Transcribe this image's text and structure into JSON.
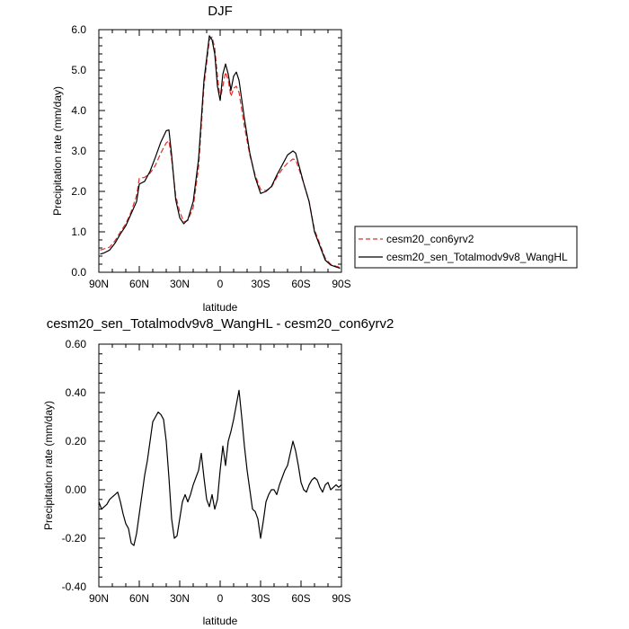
{
  "chart_data": [
    {
      "type": "line",
      "title": "DJF",
      "xlabel": "latitude",
      "ylabel": "Precipitation rate (mm/day)",
      "x_ticks": [
        "90N",
        "60N",
        "30N",
        "0",
        "30S",
        "60S",
        "90S"
      ],
      "xlim": [
        90,
        -90
      ],
      "ylim": [
        0,
        6
      ],
      "y_ticks": [
        "0.0",
        "1.0",
        "2.0",
        "3.0",
        "4.0",
        "5.0",
        "6.0"
      ],
      "legend": "right",
      "series": [
        {
          "name": "cesm20_con6yrv2",
          "color": "#e0302a",
          "style": "dashed",
          "x": [
            89,
            86,
            82,
            78,
            74,
            70,
            66,
            62,
            60,
            56,
            52,
            48,
            44,
            40,
            38,
            36,
            33,
            30,
            27,
            24,
            20,
            16,
            12,
            8,
            6,
            4,
            2,
            0,
            -2,
            -4,
            -6,
            -8,
            -10,
            -12,
            -14,
            -18,
            -22,
            -26,
            -30,
            -34,
            -38,
            -42,
            -46,
            -50,
            -54,
            -56,
            -58,
            -62,
            -66,
            -70,
            -74,
            -78,
            -82,
            -86,
            -89
          ],
          "y": [
            0.55,
            0.58,
            0.62,
            0.78,
            1.0,
            1.2,
            1.5,
            1.9,
            2.32,
            2.35,
            2.45,
            2.65,
            2.95,
            3.2,
            3.25,
            2.8,
            1.9,
            1.5,
            1.25,
            1.28,
            1.6,
            2.6,
            4.6,
            5.75,
            5.82,
            5.55,
            4.85,
            4.28,
            4.6,
            4.95,
            4.75,
            4.35,
            4.55,
            4.6,
            4.45,
            3.6,
            2.9,
            2.4,
            2.05,
            2.02,
            2.1,
            2.35,
            2.55,
            2.7,
            2.8,
            2.78,
            2.6,
            2.2,
            1.75,
            1.05,
            0.7,
            0.35,
            0.2,
            0.15,
            0.12
          ]
        },
        {
          "name": "cesm20_sen_Totalmodv9v8_WangHL",
          "color": "#000000",
          "style": "solid",
          "x": [
            89,
            86,
            82,
            78,
            74,
            70,
            66,
            62,
            60,
            56,
            52,
            48,
            44,
            40,
            38,
            36,
            33,
            30,
            27,
            24,
            20,
            16,
            12,
            8,
            6,
            4,
            2,
            0,
            -2,
            -4,
            -6,
            -8,
            -10,
            -12,
            -14,
            -18,
            -22,
            -26,
            -30,
            -34,
            -38,
            -42,
            -46,
            -50,
            -54,
            -56,
            -58,
            -62,
            -66,
            -70,
            -74,
            -78,
            -82,
            -86,
            -89
          ],
          "y": [
            0.45,
            0.48,
            0.55,
            0.72,
            0.95,
            1.15,
            1.45,
            1.75,
            2.18,
            2.25,
            2.5,
            2.85,
            3.22,
            3.5,
            3.52,
            2.9,
            1.8,
            1.35,
            1.2,
            1.3,
            1.75,
            2.8,
            4.75,
            5.85,
            5.75,
            5.4,
            4.6,
            4.25,
            4.9,
            5.15,
            4.9,
            4.5,
            4.85,
            4.95,
            4.75,
            3.8,
            2.95,
            2.35,
            1.95,
            2.0,
            2.12,
            2.4,
            2.65,
            2.9,
            3.0,
            2.95,
            2.7,
            2.2,
            1.75,
            1.0,
            0.65,
            0.3,
            0.18,
            0.13,
            0.1
          ]
        }
      ]
    },
    {
      "type": "line",
      "title": "cesm20_sen_Totalmodv9v8_WangHL - cesm20_con6yrv2",
      "xlabel": "latitude",
      "ylabel": "Precipitation rate (mm/day)",
      "x_ticks": [
        "90N",
        "60N",
        "30N",
        "0",
        "30S",
        "60S",
        "90S"
      ],
      "xlim": [
        90,
        -90
      ],
      "ylim": [
        -0.4,
        0.6
      ],
      "y_ticks": [
        "-0.40",
        "-0.20",
        "0.00",
        "0.20",
        "0.40",
        "0.60"
      ],
      "series": [
        {
          "color": "#000000",
          "style": "solid",
          "x": [
            90,
            88,
            86,
            84,
            82,
            80,
            78,
            76,
            74,
            72,
            70,
            68,
            66,
            64,
            62,
            60,
            58,
            56,
            54,
            52,
            50,
            48,
            46,
            44,
            42,
            40,
            38,
            36,
            34,
            32,
            30,
            28,
            26,
            24,
            22,
            20,
            18,
            16,
            14,
            12,
            10,
            8,
            6,
            4,
            2,
            0,
            -2,
            -4,
            -6,
            -8,
            -10,
            -12,
            -14,
            -16,
            -18,
            -20,
            -22,
            -24,
            -26,
            -28,
            -30,
            -32,
            -34,
            -36,
            -38,
            -40,
            -42,
            -44,
            -46,
            -48,
            -50,
            -52,
            -54,
            -56,
            -58,
            -60,
            -62,
            -64,
            -66,
            -68,
            -70,
            -72,
            -74,
            -76,
            -78,
            -80,
            -82,
            -84,
            -86,
            -88,
            -90
          ],
          "y": [
            -0.05,
            -0.08,
            -0.07,
            -0.06,
            -0.04,
            -0.03,
            -0.02,
            -0.01,
            -0.05,
            -0.1,
            -0.14,
            -0.16,
            -0.22,
            -0.23,
            -0.18,
            -0.1,
            -0.02,
            0.06,
            0.12,
            0.2,
            0.28,
            0.3,
            0.32,
            0.31,
            0.29,
            0.2,
            0.05,
            -0.12,
            -0.2,
            -0.19,
            -0.12,
            -0.05,
            -0.02,
            -0.05,
            -0.02,
            0.02,
            0.05,
            0.08,
            0.15,
            0.05,
            -0.04,
            -0.07,
            -0.02,
            -0.08,
            -0.04,
            0.08,
            0.18,
            0.1,
            0.2,
            0.24,
            0.29,
            0.35,
            0.41,
            0.3,
            0.18,
            0.08,
            0.0,
            -0.08,
            -0.09,
            -0.12,
            -0.2,
            -0.13,
            -0.05,
            -0.02,
            0.0,
            0.0,
            -0.02,
            0.02,
            0.05,
            0.08,
            0.1,
            0.15,
            0.2,
            0.16,
            0.1,
            0.03,
            0.0,
            -0.01,
            0.02,
            0.04,
            0.05,
            0.04,
            0.01,
            -0.01,
            0.02,
            0.03,
            0.0,
            0.01,
            0.02,
            0.01,
            0.02
          ]
        }
      ]
    }
  ]
}
